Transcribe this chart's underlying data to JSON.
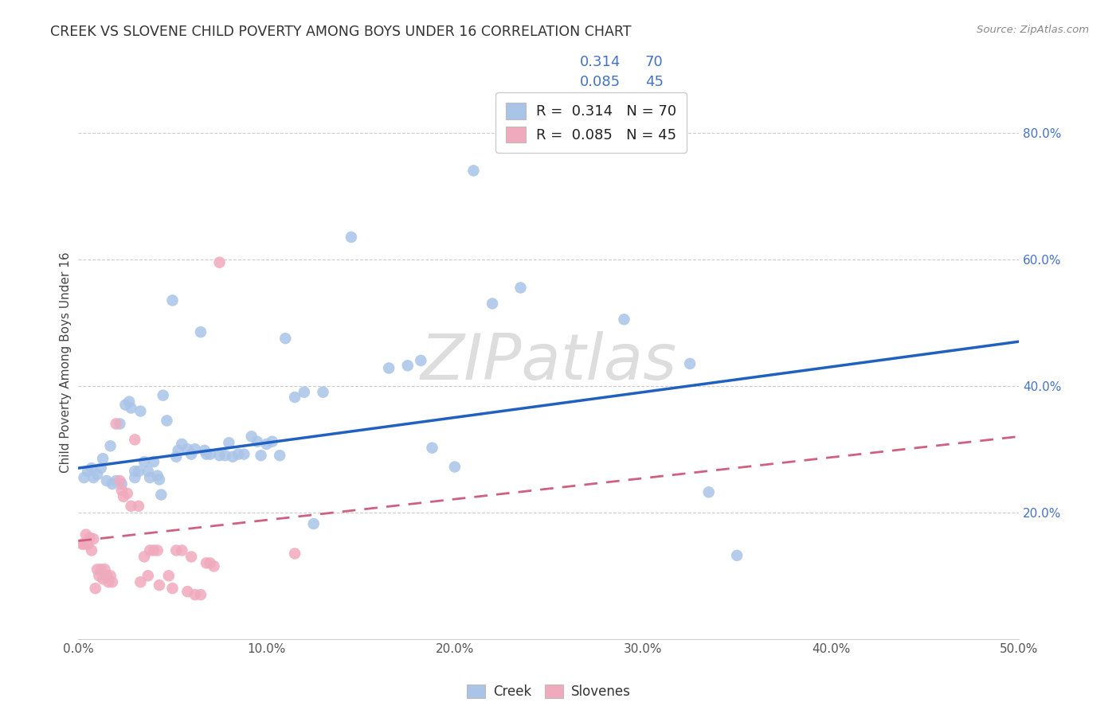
{
  "title": "CREEK VS SLOVENE CHILD POVERTY AMONG BOYS UNDER 16 CORRELATION CHART",
  "source": "Source: ZipAtlas.com",
  "ylabel": "Child Poverty Among Boys Under 16",
  "xlim": [
    0.0,
    0.5
  ],
  "ylim": [
    0.0,
    0.875
  ],
  "xtick_labels": [
    "0.0%",
    "",
    "10.0%",
    "",
    "20.0%",
    "",
    "30.0%",
    "",
    "40.0%",
    "",
    "50.0%"
  ],
  "xtick_vals": [
    0.0,
    0.05,
    0.1,
    0.15,
    0.2,
    0.25,
    0.3,
    0.35,
    0.4,
    0.45,
    0.5
  ],
  "ytick_labels": [
    "20.0%",
    "40.0%",
    "60.0%",
    "80.0%"
  ],
  "ytick_vals": [
    0.2,
    0.4,
    0.6,
    0.8
  ],
  "creek_color": "#aac4e8",
  "slovene_color": "#f0aabe",
  "creek_line_color": "#2060c0",
  "slovene_line_color": "#d06080",
  "creek_R": 0.314,
  "creek_N": 70,
  "slovene_R": 0.085,
  "slovene_N": 45,
  "creek_line_x0": 0.0,
  "creek_line_y0": 0.27,
  "creek_line_x1": 0.5,
  "creek_line_y1": 0.47,
  "slovene_line_x0": 0.0,
  "slovene_line_y0": 0.155,
  "slovene_line_x1": 0.5,
  "slovene_line_y1": 0.32,
  "creek_points": [
    [
      0.003,
      0.255
    ],
    [
      0.005,
      0.265
    ],
    [
      0.007,
      0.27
    ],
    [
      0.008,
      0.255
    ],
    [
      0.01,
      0.26
    ],
    [
      0.012,
      0.27
    ],
    [
      0.013,
      0.285
    ],
    [
      0.015,
      0.25
    ],
    [
      0.017,
      0.305
    ],
    [
      0.018,
      0.245
    ],
    [
      0.02,
      0.25
    ],
    [
      0.022,
      0.34
    ],
    [
      0.023,
      0.245
    ],
    [
      0.025,
      0.37
    ],
    [
      0.027,
      0.375
    ],
    [
      0.028,
      0.365
    ],
    [
      0.03,
      0.265
    ],
    [
      0.03,
      0.255
    ],
    [
      0.032,
      0.265
    ],
    [
      0.033,
      0.36
    ],
    [
      0.035,
      0.28
    ],
    [
      0.037,
      0.265
    ],
    [
      0.038,
      0.255
    ],
    [
      0.04,
      0.28
    ],
    [
      0.042,
      0.258
    ],
    [
      0.043,
      0.252
    ],
    [
      0.044,
      0.228
    ],
    [
      0.045,
      0.385
    ],
    [
      0.047,
      0.345
    ],
    [
      0.05,
      0.535
    ],
    [
      0.052,
      0.288
    ],
    [
      0.053,
      0.298
    ],
    [
      0.055,
      0.308
    ],
    [
      0.058,
      0.3
    ],
    [
      0.06,
      0.292
    ],
    [
      0.062,
      0.3
    ],
    [
      0.065,
      0.485
    ],
    [
      0.067,
      0.298
    ],
    [
      0.068,
      0.292
    ],
    [
      0.07,
      0.292
    ],
    [
      0.075,
      0.29
    ],
    [
      0.078,
      0.29
    ],
    [
      0.08,
      0.31
    ],
    [
      0.082,
      0.288
    ],
    [
      0.085,
      0.292
    ],
    [
      0.088,
      0.292
    ],
    [
      0.092,
      0.32
    ],
    [
      0.095,
      0.312
    ],
    [
      0.097,
      0.29
    ],
    [
      0.1,
      0.308
    ],
    [
      0.103,
      0.312
    ],
    [
      0.107,
      0.29
    ],
    [
      0.11,
      0.475
    ],
    [
      0.115,
      0.382
    ],
    [
      0.12,
      0.39
    ],
    [
      0.125,
      0.182
    ],
    [
      0.13,
      0.39
    ],
    [
      0.145,
      0.635
    ],
    [
      0.165,
      0.428
    ],
    [
      0.175,
      0.432
    ],
    [
      0.182,
      0.44
    ],
    [
      0.188,
      0.302
    ],
    [
      0.2,
      0.272
    ],
    [
      0.21,
      0.74
    ],
    [
      0.22,
      0.53
    ],
    [
      0.235,
      0.555
    ],
    [
      0.29,
      0.505
    ],
    [
      0.325,
      0.435
    ],
    [
      0.335,
      0.232
    ],
    [
      0.35,
      0.132
    ]
  ],
  "slovene_points": [
    [
      0.002,
      0.15
    ],
    [
      0.003,
      0.15
    ],
    [
      0.004,
      0.165
    ],
    [
      0.005,
      0.15
    ],
    [
      0.006,
      0.16
    ],
    [
      0.007,
      0.14
    ],
    [
      0.008,
      0.158
    ],
    [
      0.009,
      0.08
    ],
    [
      0.01,
      0.11
    ],
    [
      0.011,
      0.1
    ],
    [
      0.012,
      0.11
    ],
    [
      0.013,
      0.095
    ],
    [
      0.014,
      0.11
    ],
    [
      0.015,
      0.1
    ],
    [
      0.016,
      0.09
    ],
    [
      0.017,
      0.1
    ],
    [
      0.018,
      0.09
    ],
    [
      0.02,
      0.34
    ],
    [
      0.022,
      0.25
    ],
    [
      0.023,
      0.235
    ],
    [
      0.024,
      0.225
    ],
    [
      0.026,
      0.23
    ],
    [
      0.028,
      0.21
    ],
    [
      0.03,
      0.315
    ],
    [
      0.032,
      0.21
    ],
    [
      0.033,
      0.09
    ],
    [
      0.035,
      0.13
    ],
    [
      0.037,
      0.1
    ],
    [
      0.038,
      0.14
    ],
    [
      0.04,
      0.14
    ],
    [
      0.042,
      0.14
    ],
    [
      0.043,
      0.085
    ],
    [
      0.048,
      0.1
    ],
    [
      0.05,
      0.08
    ],
    [
      0.052,
      0.14
    ],
    [
      0.055,
      0.14
    ],
    [
      0.058,
      0.075
    ],
    [
      0.06,
      0.13
    ],
    [
      0.062,
      0.07
    ],
    [
      0.065,
      0.07
    ],
    [
      0.068,
      0.12
    ],
    [
      0.07,
      0.12
    ],
    [
      0.072,
      0.115
    ],
    [
      0.075,
      0.595
    ],
    [
      0.115,
      0.135
    ]
  ]
}
